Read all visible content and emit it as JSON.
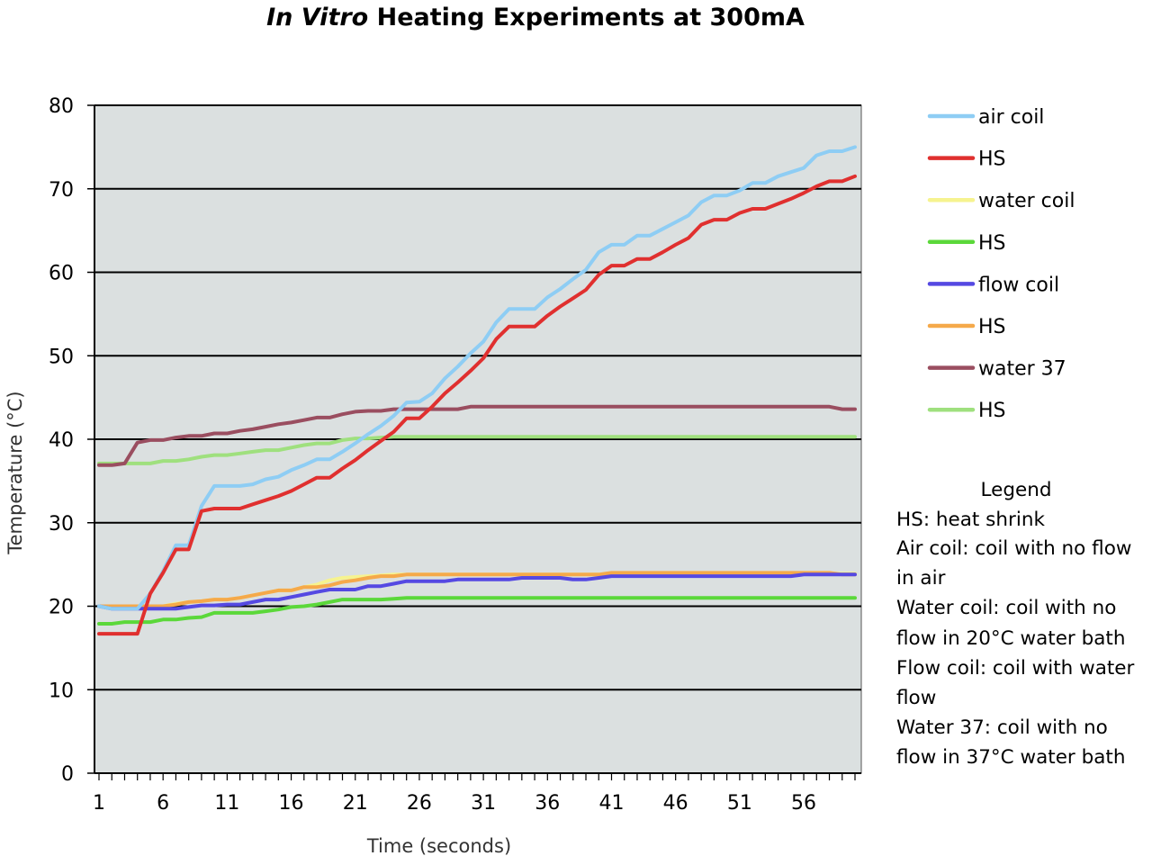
{
  "chart_data": {
    "type": "line",
    "title_italic": "In Vitro",
    "title_rest": " Heating Experiments at 300mA",
    "xlabel": "Time (seconds)",
    "ylabel": "Temperature (°C)",
    "ylim": [
      0,
      80
    ],
    "yticks": [
      0,
      10,
      20,
      30,
      40,
      50,
      60,
      70,
      80
    ],
    "xlim": [
      1,
      60
    ],
    "xticks": [
      1,
      6,
      11,
      16,
      21,
      26,
      31,
      36,
      41,
      46,
      51,
      56
    ],
    "grid": "horizontal",
    "legend_position": "right",
    "series": [
      {
        "name": "air coil",
        "color": "#8ecdf4",
        "values": [
          20,
          19.7,
          19.7,
          19.7,
          21.5,
          24.2,
          27.3,
          27.3,
          32,
          34.4,
          34.4,
          34.4,
          34.6,
          35.2,
          35.5,
          36.3,
          36.9,
          37.6,
          37.6,
          38.5,
          39.5,
          40.6,
          41.6,
          42.8,
          44.4,
          44.5,
          45.5,
          47.3,
          48.7,
          50.3,
          51.7,
          54,
          55.6,
          55.6,
          55.6,
          57,
          58,
          59.2,
          60.3,
          62.4,
          63.3,
          63.3,
          64.4,
          64.4,
          65.2,
          66,
          66.8,
          68.4,
          69.2,
          69.2,
          69.8,
          70.7,
          70.7,
          71.5,
          72,
          72.5,
          74,
          74.5,
          74.5,
          75
        ]
      },
      {
        "name": "HS",
        "color": "#e0302f",
        "values": [
          16.7,
          16.7,
          16.7,
          16.7,
          21.5,
          24,
          26.8,
          26.8,
          31.4,
          31.7,
          31.7,
          31.7,
          32.2,
          32.7,
          33.2,
          33.8,
          34.6,
          35.4,
          35.4,
          36.5,
          37.5,
          38.7,
          39.8,
          40.9,
          42.5,
          42.5,
          43.9,
          45.5,
          46.8,
          48.2,
          49.7,
          52,
          53.5,
          53.5,
          53.5,
          54.8,
          55.9,
          56.9,
          57.9,
          59.7,
          60.8,
          60.8,
          61.6,
          61.6,
          62.4,
          63.3,
          64.1,
          65.7,
          66.3,
          66.3,
          67.1,
          67.6,
          67.6,
          68.2,
          68.8,
          69.5,
          70.3,
          70.9,
          70.9,
          71.5
        ]
      },
      {
        "name": "water coil",
        "color": "#f6f38f",
        "values": [
          20,
          20,
          20,
          20,
          20,
          20,
          20.3,
          20.5,
          20.6,
          20.8,
          20.8,
          21,
          21.3,
          21.6,
          21.9,
          21.9,
          22.3,
          22.6,
          23.1,
          23.4,
          23.5,
          23.6,
          23.7,
          23.8,
          23.8,
          23.8,
          23.8,
          23.8,
          23.8,
          23.8,
          23.8,
          23.8,
          23.8,
          23.8,
          23.8,
          23.8,
          23.8,
          23.8,
          23.8,
          23.8,
          23.9,
          23.9,
          23.9,
          23.9,
          23.9,
          23.9,
          23.9,
          23.9,
          23.9,
          23.9,
          23.9,
          23.9,
          23.9,
          23.9,
          23.9,
          23.9,
          23.9,
          23.9,
          23.9,
          23.9
        ]
      },
      {
        "name": "HS",
        "color": "#5bd83a",
        "values": [
          17.9,
          17.9,
          18.1,
          18.1,
          18.1,
          18.4,
          18.4,
          18.6,
          18.7,
          19.2,
          19.2,
          19.2,
          19.2,
          19.4,
          19.6,
          19.9,
          20,
          20.2,
          20.5,
          20.8,
          20.8,
          20.8,
          20.8,
          20.9,
          21,
          21,
          21,
          21,
          21,
          21,
          21,
          21,
          21,
          21,
          21,
          21,
          21,
          21,
          21,
          21,
          21,
          21,
          21,
          21,
          21,
          21,
          21,
          21,
          21,
          21,
          21,
          21,
          21,
          21,
          21,
          21,
          21,
          21,
          21,
          21
        ]
      },
      {
        "name": "flow coil",
        "color": "#5549e2",
        "values": [
          20,
          19.7,
          19.7,
          19.7,
          19.7,
          19.7,
          19.7,
          19.9,
          20.1,
          20.1,
          20.2,
          20.2,
          20.5,
          20.8,
          20.8,
          21.1,
          21.4,
          21.7,
          22,
          22,
          22,
          22.4,
          22.4,
          22.7,
          23,
          23,
          23,
          23,
          23.2,
          23.2,
          23.2,
          23.2,
          23.2,
          23.4,
          23.4,
          23.4,
          23.4,
          23.2,
          23.2,
          23.4,
          23.6,
          23.6,
          23.6,
          23.6,
          23.6,
          23.6,
          23.6,
          23.6,
          23.6,
          23.6,
          23.6,
          23.6,
          23.6,
          23.6,
          23.6,
          23.8,
          23.8,
          23.8,
          23.8,
          23.8
        ]
      },
      {
        "name": "HS",
        "color": "#f5a94a",
        "values": [
          20,
          20,
          20,
          20,
          20,
          20,
          20.2,
          20.5,
          20.6,
          20.8,
          20.8,
          21,
          21.3,
          21.6,
          21.9,
          21.9,
          22.3,
          22.3,
          22.5,
          22.9,
          23.1,
          23.4,
          23.6,
          23.6,
          23.8,
          23.8,
          23.8,
          23.8,
          23.8,
          23.8,
          23.8,
          23.8,
          23.8,
          23.8,
          23.8,
          23.8,
          23.8,
          23.8,
          23.8,
          23.8,
          24,
          24,
          24,
          24,
          24,
          24,
          24,
          24,
          24,
          24,
          24,
          24,
          24,
          24,
          24,
          24,
          24,
          24,
          23.8,
          23.8
        ]
      },
      {
        "name": "water 37",
        "color": "#9a4e60",
        "values": [
          36.9,
          36.9,
          37.1,
          39.6,
          39.9,
          39.9,
          40.2,
          40.4,
          40.4,
          40.7,
          40.7,
          41,
          41.2,
          41.5,
          41.8,
          42,
          42.3,
          42.6,
          42.6,
          43,
          43.3,
          43.4,
          43.4,
          43.6,
          43.6,
          43.6,
          43.6,
          43.6,
          43.6,
          43.9,
          43.9,
          43.9,
          43.9,
          43.9,
          43.9,
          43.9,
          43.9,
          43.9,
          43.9,
          43.9,
          43.9,
          43.9,
          43.9,
          43.9,
          43.9,
          43.9,
          43.9,
          43.9,
          43.9,
          43.9,
          43.9,
          43.9,
          43.9,
          43.9,
          43.9,
          43.9,
          43.9,
          43.9,
          43.6,
          43.6
        ]
      },
      {
        "name": "HS",
        "color": "#9fe07e",
        "values": [
          37.1,
          37.1,
          37.1,
          37.1,
          37.1,
          37.4,
          37.4,
          37.6,
          37.9,
          38.1,
          38.1,
          38.3,
          38.5,
          38.7,
          38.7,
          39,
          39.3,
          39.5,
          39.5,
          39.9,
          40.1,
          40.1,
          40.2,
          40.3,
          40.3,
          40.3,
          40.3,
          40.3,
          40.3,
          40.3,
          40.3,
          40.3,
          40.3,
          40.3,
          40.3,
          40.3,
          40.3,
          40.3,
          40.3,
          40.3,
          40.3,
          40.3,
          40.3,
          40.3,
          40.3,
          40.3,
          40.3,
          40.3,
          40.3,
          40.3,
          40.3,
          40.3,
          40.3,
          40.3,
          40.3,
          40.3,
          40.3,
          40.3,
          40.3,
          40.3
        ]
      }
    ],
    "notes": [
      "Legend",
      "HS: heat shrink",
      "Air coil: coil with no flow",
      "in air",
      "Water coil: coil with no",
      "flow in 20°C water bath",
      "Flow coil: coil with water",
      "flow",
      "Water 37: coil with no",
      "flow in 37°C water bath"
    ]
  }
}
